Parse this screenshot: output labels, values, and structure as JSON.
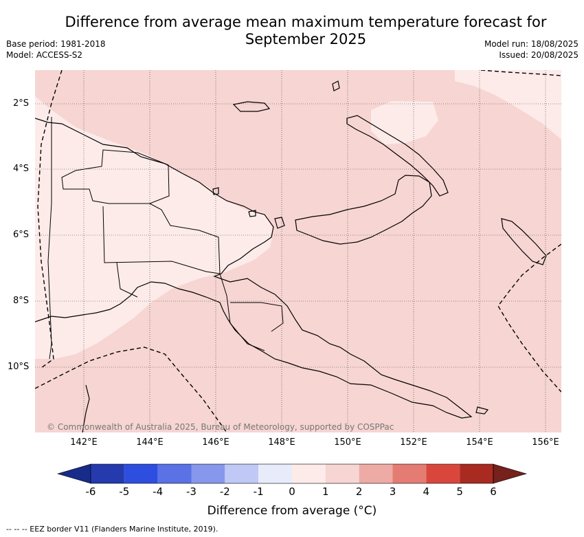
{
  "title_line1": "Difference from average mean maximum temperature forecast for",
  "title_line2": "September 2025",
  "meta": {
    "base_period": "Base period: 1981-2018",
    "model": "Model: ACCESS-S2",
    "model_run": "Model run: 18/08/2025",
    "issued": "Issued: 20/08/2025"
  },
  "map": {
    "lat_labels": [
      "2°S",
      "4°S",
      "6°S",
      "8°S",
      "10°S"
    ],
    "lon_labels": [
      "142°E",
      "144°E",
      "146°E",
      "148°E",
      "150°E",
      "152°E",
      "154°E",
      "156°E"
    ],
    "copyright": "© Commonwealth of Australia 2025, Bureau of Meteorology, supported by COSPPac",
    "fill_colors": {
      "0_to_1": "#fcebe9",
      "1_to_2": "#f6d5d2"
    }
  },
  "colorbar": {
    "tick_labels": [
      "-6",
      "-5",
      "-4",
      "-3",
      "-2",
      "-1",
      "0",
      "1",
      "2",
      "3",
      "4",
      "5",
      "6"
    ],
    "colors": [
      "#243aad",
      "#2e4ee0",
      "#5a72e6",
      "#8797ec",
      "#c0c9f5",
      "#e8ecfa",
      "#fcebe9",
      "#f6d5d2",
      "#eeaaa5",
      "#e47c74",
      "#d9473c",
      "#a92a21"
    ],
    "under_color": "#172b8a",
    "over_color": "#76211b",
    "title": "Difference from average (°C)"
  },
  "footnote": "--  --  -- EEZ border V11 (Flanders Marine Institute, 2019)."
}
